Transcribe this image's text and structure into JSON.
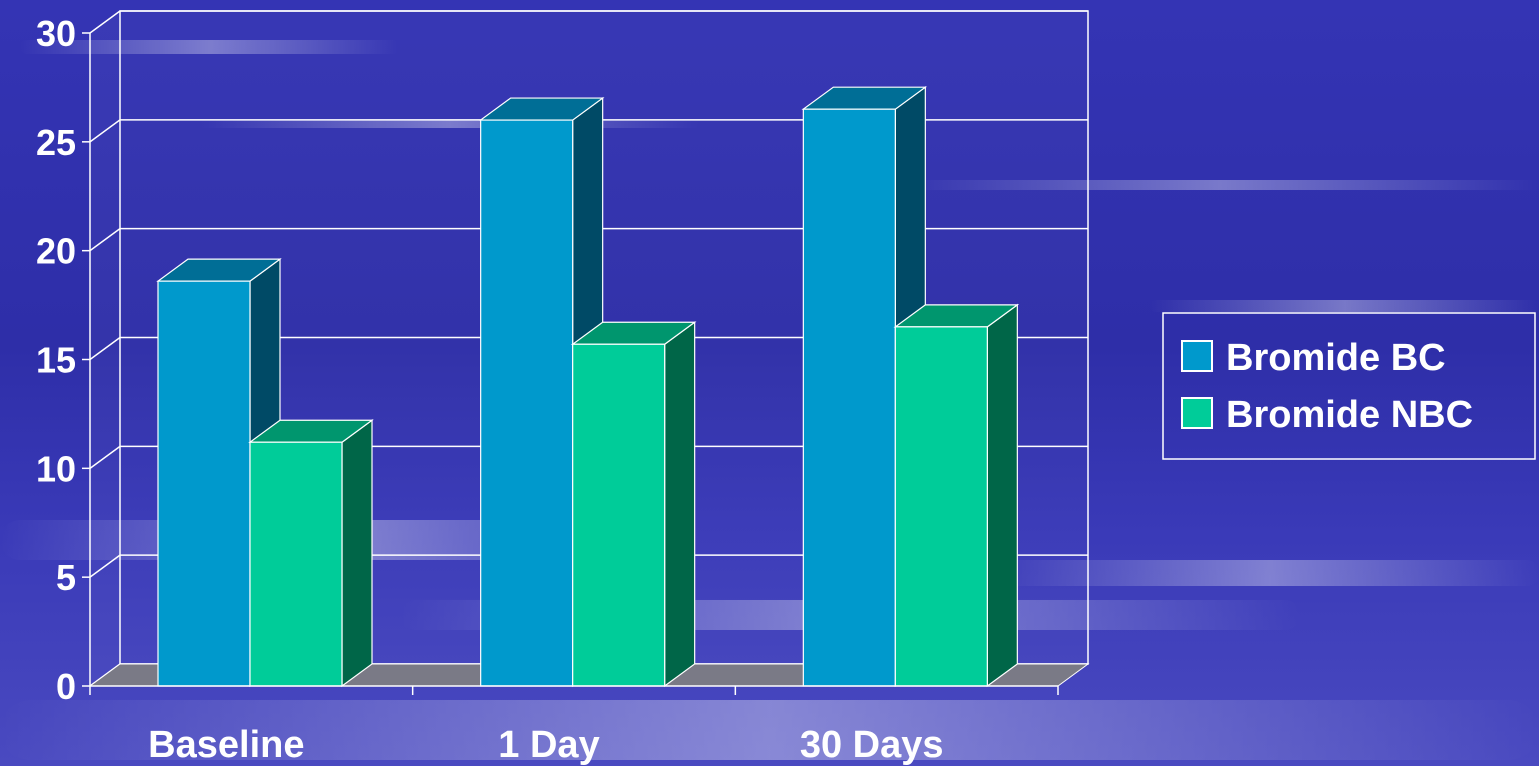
{
  "chart_data": {
    "type": "bar",
    "title": "",
    "xlabel": "",
    "ylabel": "",
    "categories": [
      "Baseline",
      "1 Day",
      "30 Days"
    ],
    "series": [
      {
        "name": "Bromide BC",
        "values": [
          18.6,
          26,
          26.5
        ]
      },
      {
        "name": "Bromide NBC",
        "values": [
          11.2,
          15.7,
          16.5
        ]
      }
    ],
    "ylim": [
      0,
      30
    ],
    "yticks": [
      "0",
      "5",
      "10",
      "15",
      "20",
      "25",
      "30"
    ],
    "grid": true,
    "legend_position": "right",
    "colors": {
      "series_front": [
        "#0099cc",
        "#00cc99"
      ],
      "series_top": [
        "#006e96",
        "#00966e"
      ],
      "series_side": [
        "#004a66",
        "#006648"
      ],
      "floor": "#7a7a86",
      "axis": "#ffffff",
      "gridline": "#ffffff"
    }
  }
}
